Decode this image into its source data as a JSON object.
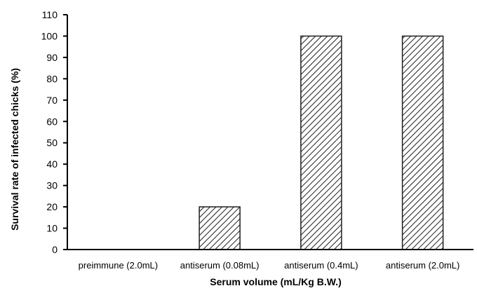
{
  "chart_data": {
    "type": "bar",
    "categories": [
      "preimmune (2.0mL)",
      "antiserum (0.08mL)",
      "antiserum (0.4mL)",
      "antiserum (2.0mL)"
    ],
    "values": [
      0,
      20,
      100,
      100
    ],
    "title": "",
    "xlabel": "Serum volume (mL/Kg B.W.)",
    "ylabel": "Survival rate of infected chicks (%)",
    "ylim": [
      0,
      110
    ],
    "yticks": [
      0,
      10,
      20,
      30,
      40,
      50,
      60,
      70,
      80,
      90,
      100,
      110
    ],
    "grid": false,
    "legend": "none",
    "bar_fill": "diagonal-hatch",
    "colors": {
      "bar_stroke": "#1f1f1f",
      "hatch": "#1f1f1f",
      "background": "#ffffff",
      "axis": "#000000"
    }
  }
}
